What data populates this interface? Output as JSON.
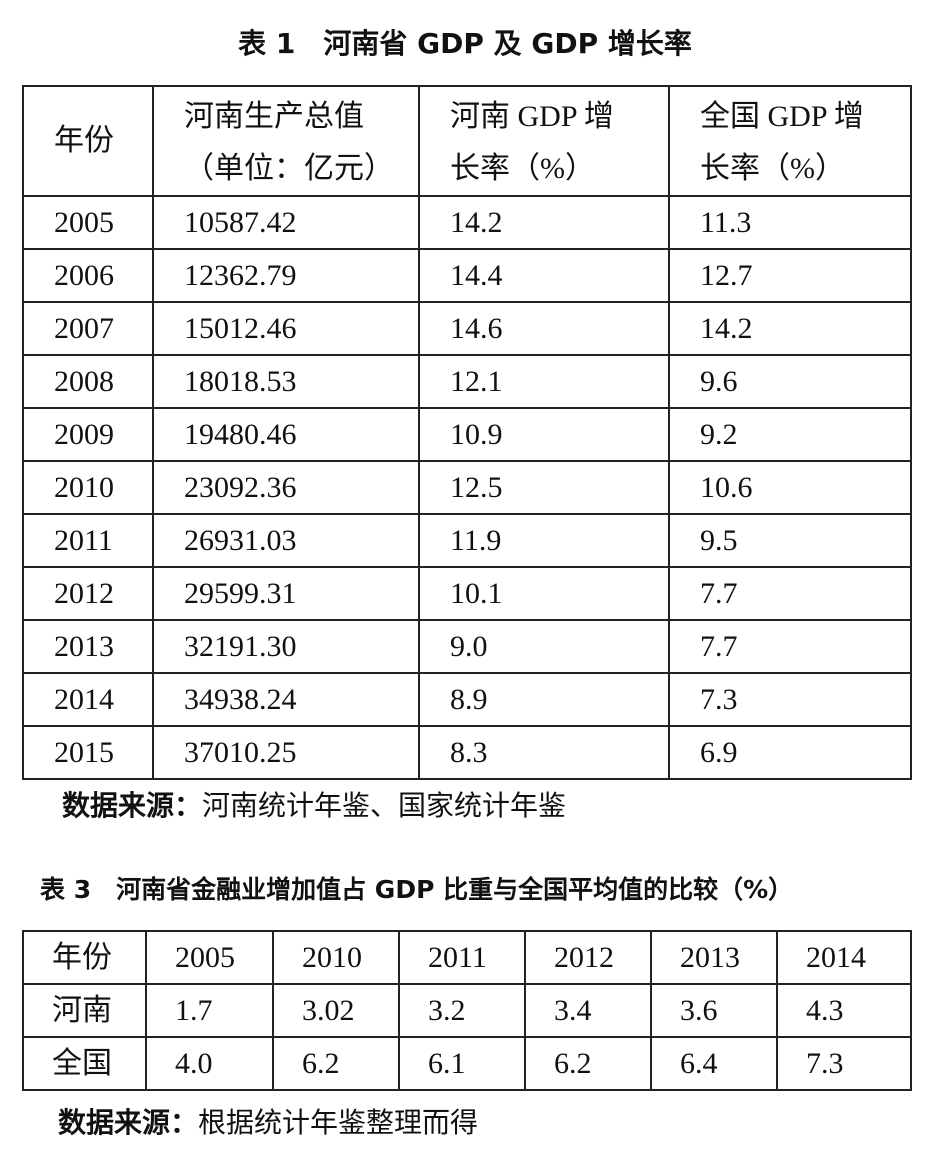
{
  "table1": {
    "title": "表 1　河南省 GDP 及 GDP 增长率",
    "header": [
      [
        "年份"
      ],
      [
        "河南生产总值",
        "（单位：亿元）"
      ],
      [
        "河南 GDP 增",
        "长率（%）"
      ],
      [
        "全国 GDP 增",
        "长率（%）"
      ]
    ],
    "rows": [
      [
        "2005",
        "10587.42",
        "14.2",
        "11.3"
      ],
      [
        "2006",
        "12362.79",
        "14.4",
        "12.7"
      ],
      [
        "2007",
        "15012.46",
        "14.6",
        "14.2"
      ],
      [
        "2008",
        "18018.53",
        "12.1",
        "9.6"
      ],
      [
        "2009",
        "19480.46",
        "10.9",
        "9.2"
      ],
      [
        "2010",
        "23092.36",
        "12.5",
        "10.6"
      ],
      [
        "2011",
        "26931.03",
        "11.9",
        "9.5"
      ],
      [
        "2012",
        "29599.31",
        "10.1",
        "7.7"
      ],
      [
        "2013",
        "32191.30",
        "9.0",
        "7.7"
      ],
      [
        "2014",
        "34938.24",
        "8.9",
        "7.3"
      ],
      [
        "2015",
        "37010.25",
        "8.3",
        "6.9"
      ]
    ]
  },
  "source1": {
    "label": "数据来源：",
    "text": "河南统计年鉴、国家统计年鉴"
  },
  "table2": {
    "title": "表 3　河南省金融业增加值占 GDP 比重与全国平均值的比较（%）",
    "header": [
      "年份",
      "2005",
      "2010",
      "2011",
      "2012",
      "2013",
      "2014"
    ],
    "rows": [
      [
        "河南",
        "1.7",
        "3.02",
        "3.2",
        "3.4",
        "3.6",
        "4.3"
      ],
      [
        "全国",
        "4.0",
        "6.2",
        "6.1",
        "6.2",
        "6.4",
        "7.3"
      ]
    ]
  },
  "source2": {
    "label": "数据来源：",
    "text": "根据统计年鉴整理而得"
  }
}
